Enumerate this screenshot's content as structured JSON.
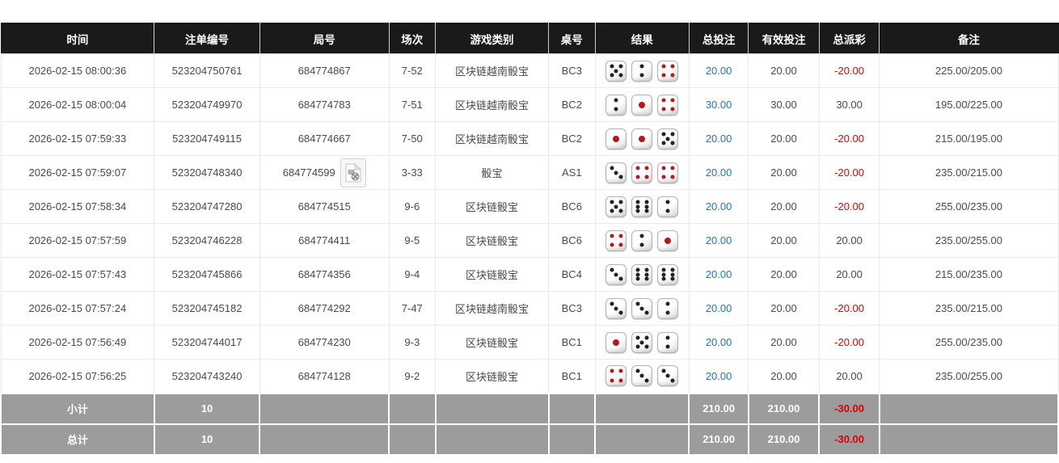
{
  "table": {
    "columns": [
      {
        "key": "time",
        "label": "时间",
        "width": "14.5%"
      },
      {
        "key": "order_no",
        "label": "注单编号",
        "width": "10.0%"
      },
      {
        "key": "round_no",
        "label": "局号",
        "width": "12.2%"
      },
      {
        "key": "session",
        "label": "场次",
        "width": "4.4%"
      },
      {
        "key": "game_type",
        "label": "游戏类别",
        "width": "10.7%"
      },
      {
        "key": "table_no",
        "label": "桌号",
        "width": "4.4%"
      },
      {
        "key": "result",
        "label": "结果",
        "width": "8.9%"
      },
      {
        "key": "total_bet",
        "label": "总投注",
        "width": "5.6%"
      },
      {
        "key": "valid_bet",
        "label": "有效投注",
        "width": "6.7%"
      },
      {
        "key": "payout",
        "label": "总派彩",
        "width": "5.7%"
      },
      {
        "key": "remark",
        "label": "备注",
        "width": "16.9%"
      }
    ],
    "rows": [
      {
        "time": "2026-02-15 08:00:36",
        "order_no": "523204750761",
        "round_no": "684774867",
        "session": "7-52",
        "game_type": "区块链越南骰宝",
        "table_no": "BC3",
        "dice": [
          5,
          2,
          4
        ],
        "has_video": false,
        "total_bet": "20.00",
        "valid_bet": "20.00",
        "payout": "-20.00",
        "remark": "225.00/205.00"
      },
      {
        "time": "2026-02-15 08:00:04",
        "order_no": "523204749970",
        "round_no": "684774783",
        "session": "7-51",
        "game_type": "区块链越南骰宝",
        "table_no": "BC2",
        "dice": [
          2,
          1,
          4
        ],
        "has_video": false,
        "total_bet": "30.00",
        "valid_bet": "30.00",
        "payout": "30.00",
        "remark": "195.00/225.00"
      },
      {
        "time": "2026-02-15 07:59:33",
        "order_no": "523204749115",
        "round_no": "684774667",
        "session": "7-50",
        "game_type": "区块链越南骰宝",
        "table_no": "BC2",
        "dice": [
          1,
          1,
          5
        ],
        "has_video": false,
        "total_bet": "20.00",
        "valid_bet": "20.00",
        "payout": "-20.00",
        "remark": "215.00/195.00"
      },
      {
        "time": "2026-02-15 07:59:07",
        "order_no": "523204748340",
        "round_no": "684774599",
        "session": "3-33",
        "game_type": "骰宝",
        "table_no": "AS1",
        "dice": [
          3,
          4,
          4
        ],
        "has_video": true,
        "total_bet": "20.00",
        "valid_bet": "20.00",
        "payout": "-20.00",
        "remark": "235.00/215.00"
      },
      {
        "time": "2026-02-15 07:58:34",
        "order_no": "523204747280",
        "round_no": "684774515",
        "session": "9-6",
        "game_type": "区块链骰宝",
        "table_no": "BC6",
        "dice": [
          5,
          6,
          2
        ],
        "has_video": false,
        "total_bet": "20.00",
        "valid_bet": "20.00",
        "payout": "-20.00",
        "remark": "255.00/235.00"
      },
      {
        "time": "2026-02-15 07:57:59",
        "order_no": "523204746228",
        "round_no": "684774411",
        "session": "9-5",
        "game_type": "区块链骰宝",
        "table_no": "BC6",
        "dice": [
          4,
          2,
          1
        ],
        "has_video": false,
        "total_bet": "20.00",
        "valid_bet": "20.00",
        "payout": "20.00",
        "remark": "235.00/255.00"
      },
      {
        "time": "2026-02-15 07:57:43",
        "order_no": "523204745866",
        "round_no": "684774356",
        "session": "9-4",
        "game_type": "区块链骰宝",
        "table_no": "BC4",
        "dice": [
          3,
          6,
          6
        ],
        "has_video": false,
        "total_bet": "20.00",
        "valid_bet": "20.00",
        "payout": "20.00",
        "remark": "215.00/235.00"
      },
      {
        "time": "2026-02-15 07:57:24",
        "order_no": "523204745182",
        "round_no": "684774292",
        "session": "7-47",
        "game_type": "区块链越南骰宝",
        "table_no": "BC3",
        "dice": [
          3,
          3,
          2
        ],
        "has_video": false,
        "total_bet": "20.00",
        "valid_bet": "20.00",
        "payout": "-20.00",
        "remark": "235.00/215.00"
      },
      {
        "time": "2026-02-15 07:56:49",
        "order_no": "523204744017",
        "round_no": "684774230",
        "session": "9-3",
        "game_type": "区块链骰宝",
        "table_no": "BC1",
        "dice": [
          1,
          5,
          2
        ],
        "has_video": false,
        "total_bet": "20.00",
        "valid_bet": "20.00",
        "payout": "-20.00",
        "remark": "255.00/235.00"
      },
      {
        "time": "2026-02-15 07:56:25",
        "order_no": "523204743240",
        "round_no": "684774128",
        "session": "9-2",
        "game_type": "区块链骰宝",
        "table_no": "BC1",
        "dice": [
          4,
          3,
          3
        ],
        "has_video": false,
        "total_bet": "20.00",
        "valid_bet": "20.00",
        "payout": "20.00",
        "remark": "235.00/255.00"
      }
    ],
    "footer": [
      {
        "label": "小计",
        "count": "10",
        "total_bet": "210.00",
        "valid_bet": "210.00",
        "payout": "-30.00"
      },
      {
        "label": "总计",
        "count": "10",
        "total_bet": "210.00",
        "valid_bet": "210.00",
        "payout": "-30.00"
      }
    ]
  },
  "icons": {
    "video_icon": "video-replay-icon"
  },
  "colors": {
    "header_bg": "#1a1a1a",
    "bet_blue": "#1a73d1",
    "negative_red": "#e00000",
    "footer_bg": "#9c9c9c",
    "die_pip_black": "#222222",
    "die_pip_red": "#b31b1b"
  }
}
